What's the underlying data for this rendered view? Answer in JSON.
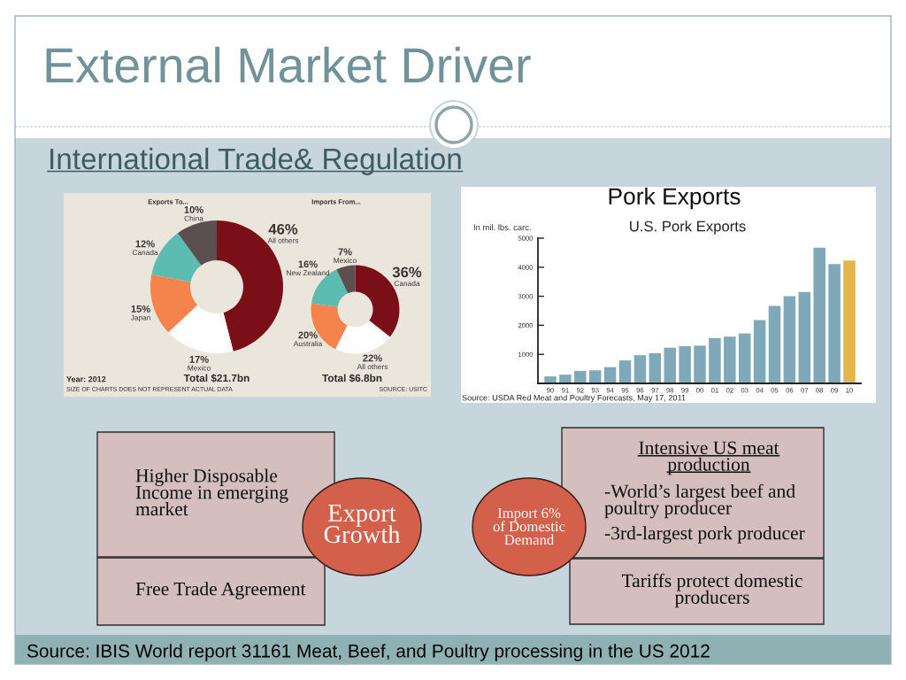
{
  "chart_data": [
    {
      "type": "other",
      "title": "External Market Driver",
      "subtitle": "International Trade& Regulation"
    },
    {
      "type": "donut",
      "title": "Exports To...",
      "categories": [
        "All others",
        "Mexico",
        "Japan",
        "Canada",
        "China"
      ],
      "values": [
        46,
        17,
        15,
        12,
        10
      ],
      "value_labels": [
        "46%",
        "17%",
        "15%",
        "12%",
        "10%"
      ],
      "colors": [
        "#7a0f17",
        "#ffffff",
        "#f4844c",
        "#5cbcb1",
        "#5b4f4f"
      ],
      "annotations": [
        "Total $21.7bn",
        "Year: 2012",
        "SIZE OF CHARTS DOES NOT REPRESENT ACTUAL DATA"
      ]
    },
    {
      "type": "donut",
      "title": "Imports From...",
      "categories": [
        "Canada",
        "All others",
        "Australia",
        "New Zealand",
        "Mexico"
      ],
      "values": [
        36,
        22,
        20,
        16,
        7
      ],
      "value_labels": [
        "36%",
        "22%",
        "20%",
        "16%",
        "7%"
      ],
      "colors": [
        "#7a0f17",
        "#ffffff",
        "#f4844c",
        "#5cbcb1",
        "#5b4f4f"
      ],
      "annotations": [
        "Total $6.8bn",
        "SOURCE: USITC"
      ]
    },
    {
      "type": "bar",
      "title": "Pork Exports",
      "subtitle": "U.S. Pork Exports",
      "ylabel": "In mil. lbs. carc.",
      "categories": [
        "90",
        "91",
        "92",
        "93",
        "94",
        "95",
        "96",
        "97",
        "98",
        "99",
        "00",
        "01",
        "02",
        "03",
        "04",
        "05",
        "06",
        "07",
        "08",
        "09",
        "10"
      ],
      "values": [
        240,
        300,
        430,
        450,
        560,
        790,
        970,
        1040,
        1230,
        1280,
        1300,
        1560,
        1610,
        1720,
        2180,
        2670,
        3000,
        3150,
        4670,
        4110,
        4230
      ],
      "colors": [
        "#7fa9b8",
        "#7fa9b8",
        "#7fa9b8",
        "#7fa9b8",
        "#7fa9b8",
        "#7fa9b8",
        "#7fa9b8",
        "#7fa9b8",
        "#7fa9b8",
        "#7fa9b8",
        "#7fa9b8",
        "#7fa9b8",
        "#7fa9b8",
        "#7fa9b8",
        "#7fa9b8",
        "#7fa9b8",
        "#7fa9b8",
        "#7fa9b8",
        "#7fa9b8",
        "#7fa9b8",
        "#e3b64a"
      ],
      "ylim": [
        0,
        5000
      ],
      "yticks": [
        1000,
        2000,
        3000,
        4000,
        5000
      ],
      "annotations": [
        "Source: USDA Red Meat and Poultry Forecasts, May 17, 2011"
      ]
    },
    {
      "type": "other",
      "annotations": [
        "Higher Disposable\nIncome in emerging\nmarket",
        "Export\nGrowth",
        "Free Trade Agreement",
        "Import 6%\nof Domestic\nDemand",
        "Intensive US meat\nproduction",
        "-World’s largest beef and\npoultry producer",
        "-3rd-largest pork producer",
        "Tariffs protect domestic\nproducers",
        "Source: IBIS World report 31161 Meat, Beef, and Poultry processing in the US 2012"
      ]
    }
  ]
}
